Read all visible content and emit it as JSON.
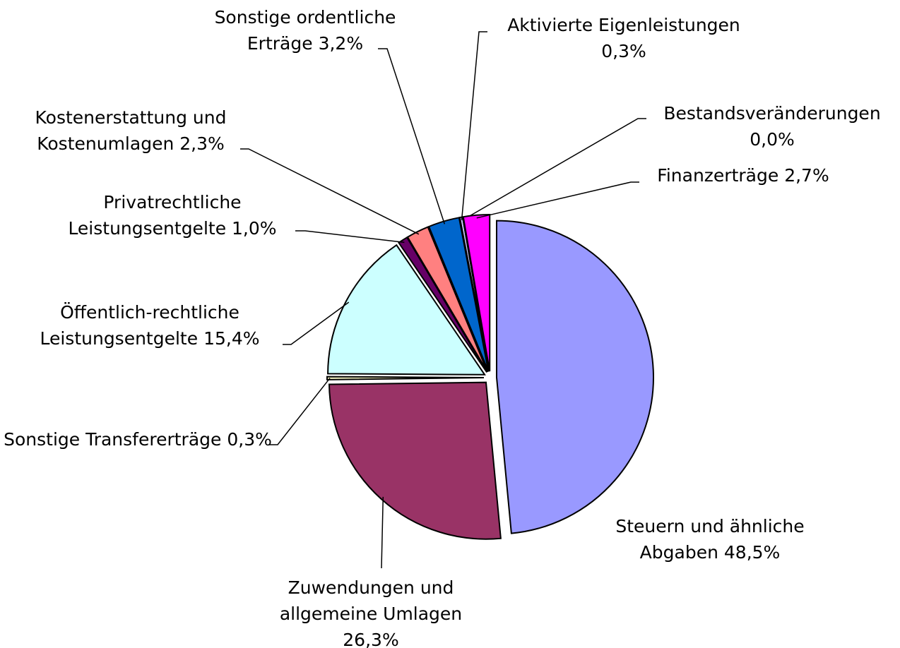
{
  "chart_data": {
    "type": "pie",
    "categories": [
      "Steuern und ähnliche Abgaben",
      "Zuwendungen und allgemeine Umlagen",
      "Sonstige Transfererträge",
      "Öffentlich-rechtliche Leistungsentgelte",
      "Privatrechtliche Leistungsentgelte",
      "Kostenerstattung und Kostenumlagen",
      "Sonstige ordentliche Erträge",
      "Aktivierte Eigenleistungen",
      "Bestandsveränderungen",
      "Finanzerträge"
    ],
    "values": [
      48.5,
      26.3,
      0.3,
      15.4,
      1.0,
      2.3,
      3.2,
      0.3,
      0.0,
      2.7
    ],
    "value_labels": [
      "48,5%",
      "26,3%",
      "0,3%",
      "15,4%",
      "1,0%",
      "2,3%",
      "3,2%",
      "0,3%",
      "0,0%",
      "2,7%"
    ],
    "colors": [
      "#9999ff",
      "#993366",
      "#ffffcc",
      "#ccffff",
      "#660066",
      "#ff8080",
      "#0066cc",
      "#ccccff",
      "#000080",
      "#ff00ff"
    ]
  }
}
